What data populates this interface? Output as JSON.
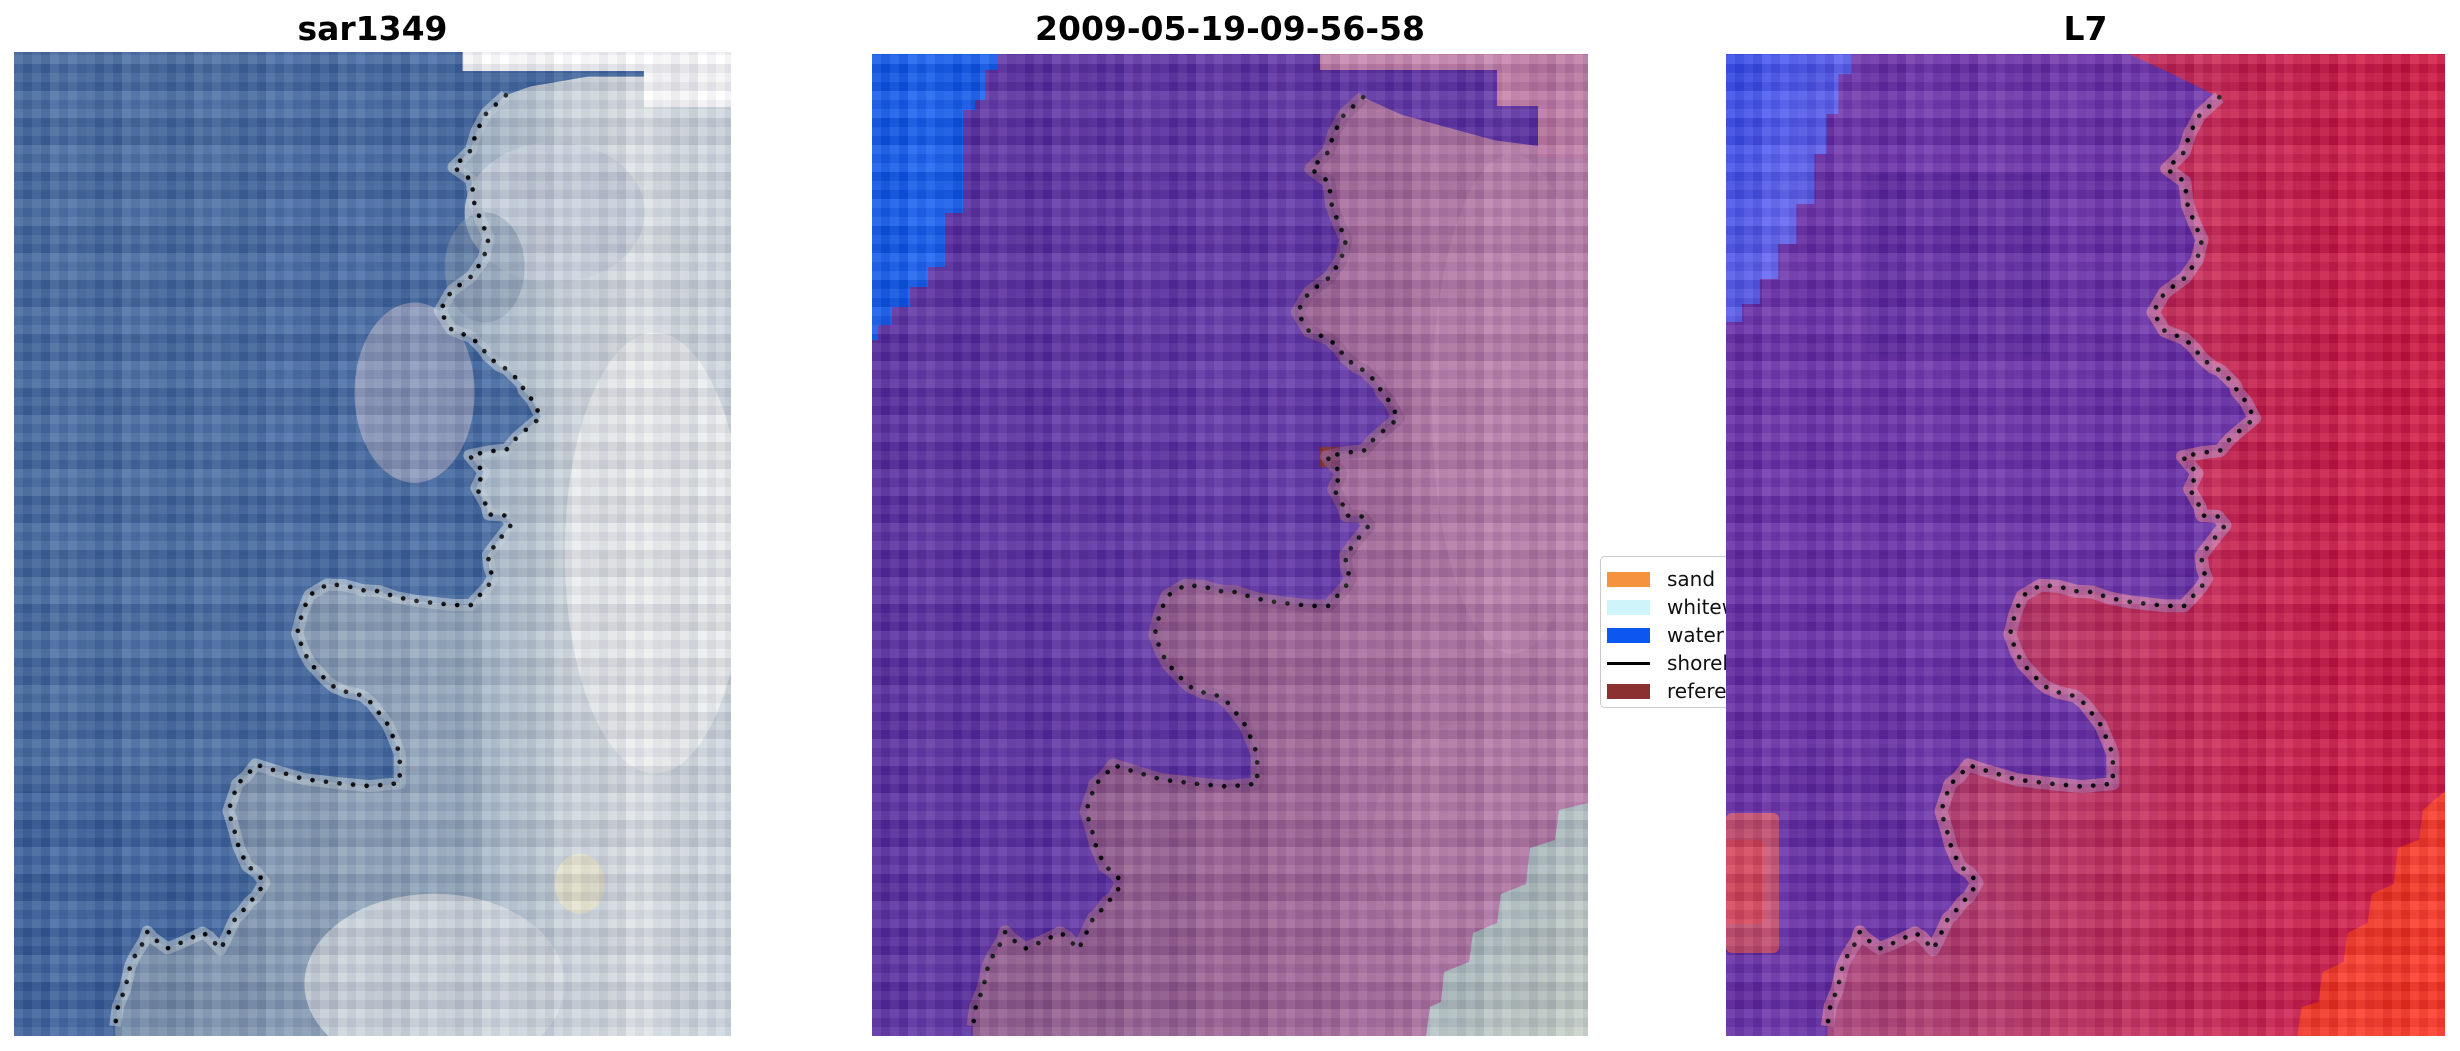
{
  "figure": {
    "background": "#ffffff"
  },
  "panels": [
    {
      "id": "sar",
      "title": "sar1349"
    },
    {
      "id": "class",
      "title": "2009-05-19-09-56-58"
    },
    {
      "id": "l7",
      "title": "L7"
    }
  ],
  "legend": {
    "items": [
      {
        "label": "sand",
        "swatch": "patch",
        "color": "#F5923E"
      },
      {
        "label": "whitewater",
        "swatch": "patch",
        "color": "#CFF4F9"
      },
      {
        "label": "water",
        "swatch": "patch",
        "color": "#0B57F0"
      },
      {
        "label": "shoreline",
        "swatch": "line",
        "color": "#000000"
      },
      {
        "label": "reference",
        "swatch": "patch",
        "color": "#8C3131"
      }
    ]
  },
  "overlay": {
    "shoreline_normalized": [
      [
        0.686,
        0.044
      ],
      [
        0.659,
        0.062
      ],
      [
        0.645,
        0.081
      ],
      [
        0.637,
        0.1
      ],
      [
        0.613,
        0.117
      ],
      [
        0.638,
        0.13
      ],
      [
        0.642,
        0.154
      ],
      [
        0.652,
        0.173
      ],
      [
        0.662,
        0.189
      ],
      [
        0.655,
        0.21
      ],
      [
        0.638,
        0.228
      ],
      [
        0.61,
        0.243
      ],
      [
        0.594,
        0.263
      ],
      [
        0.61,
        0.282
      ],
      [
        0.638,
        0.29
      ],
      [
        0.652,
        0.3
      ],
      [
        0.661,
        0.309
      ],
      [
        0.677,
        0.319
      ],
      [
        0.687,
        0.322
      ],
      [
        0.708,
        0.337
      ],
      [
        0.711,
        0.344
      ],
      [
        0.722,
        0.353
      ],
      [
        0.735,
        0.371
      ],
      [
        0.712,
        0.385
      ],
      [
        0.701,
        0.392
      ],
      [
        0.687,
        0.404
      ],
      [
        0.662,
        0.406
      ],
      [
        0.635,
        0.41
      ],
      [
        0.655,
        0.427
      ],
      [
        0.645,
        0.443
      ],
      [
        0.659,
        0.461
      ],
      [
        0.662,
        0.47
      ],
      [
        0.684,
        0.471
      ],
      [
        0.694,
        0.48
      ],
      [
        0.684,
        0.489
      ],
      [
        0.672,
        0.5
      ],
      [
        0.661,
        0.511
      ],
      [
        0.663,
        0.524
      ],
      [
        0.668,
        0.534
      ],
      [
        0.661,
        0.543
      ],
      [
        0.637,
        0.562
      ],
      [
        0.612,
        0.562
      ],
      [
        0.587,
        0.56
      ],
      [
        0.563,
        0.558
      ],
      [
        0.533,
        0.554
      ],
      [
        0.51,
        0.548
      ],
      [
        0.487,
        0.547
      ],
      [
        0.461,
        0.542
      ],
      [
        0.437,
        0.541
      ],
      [
        0.412,
        0.552
      ],
      [
        0.402,
        0.57
      ],
      [
        0.395,
        0.591
      ],
      [
        0.404,
        0.609
      ],
      [
        0.413,
        0.621
      ],
      [
        0.436,
        0.639
      ],
      [
        0.446,
        0.645
      ],
      [
        0.462,
        0.65
      ],
      [
        0.486,
        0.654
      ],
      [
        0.499,
        0.662
      ],
      [
        0.521,
        0.683
      ],
      [
        0.531,
        0.7
      ],
      [
        0.538,
        0.713
      ],
      [
        0.538,
        0.724
      ],
      [
        0.538,
        0.743
      ],
      [
        0.496,
        0.746
      ],
      [
        0.451,
        0.743
      ],
      [
        0.405,
        0.739
      ],
      [
        0.363,
        0.73
      ],
      [
        0.337,
        0.724
      ],
      [
        0.324,
        0.736
      ],
      [
        0.311,
        0.744
      ],
      [
        0.309,
        0.75
      ],
      [
        0.299,
        0.771
      ],
      [
        0.307,
        0.79
      ],
      [
        0.313,
        0.807
      ],
      [
        0.325,
        0.827
      ],
      [
        0.339,
        0.834
      ],
      [
        0.349,
        0.844
      ],
      [
        0.338,
        0.858
      ],
      [
        0.328,
        0.864
      ],
      [
        0.316,
        0.876
      ],
      [
        0.309,
        0.88
      ],
      [
        0.295,
        0.902
      ],
      [
        0.288,
        0.912
      ],
      [
        0.272,
        0.899
      ],
      [
        0.263,
        0.895
      ],
      [
        0.237,
        0.904
      ],
      [
        0.214,
        0.911
      ],
      [
        0.193,
        0.9
      ],
      [
        0.186,
        0.894
      ],
      [
        0.182,
        0.903
      ],
      [
        0.169,
        0.918
      ],
      [
        0.162,
        0.929
      ],
      [
        0.159,
        0.939
      ],
      [
        0.155,
        0.952
      ],
      [
        0.145,
        0.97
      ],
      [
        0.141,
        0.99
      ]
    ]
  }
}
